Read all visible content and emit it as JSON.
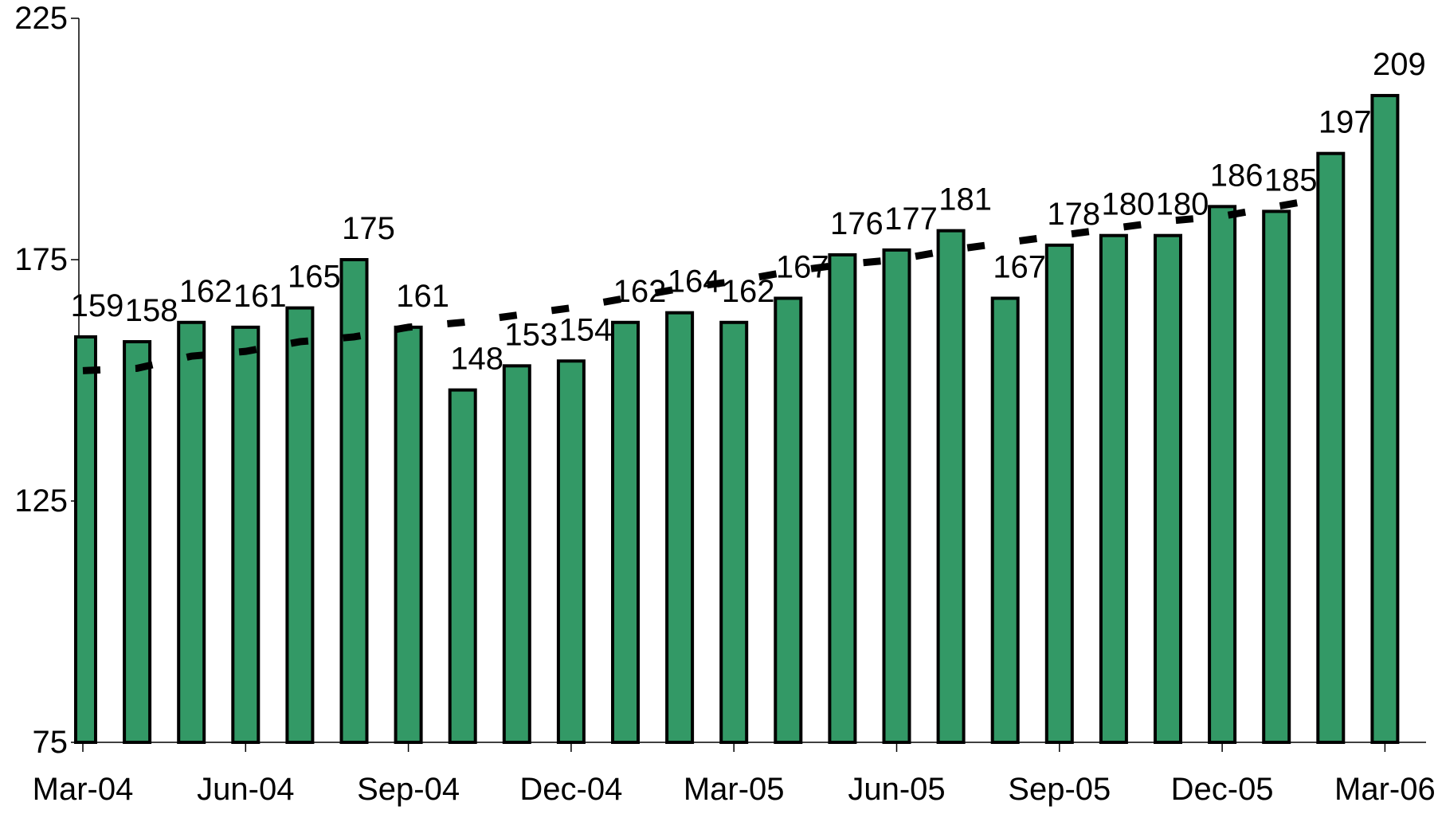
{
  "chart_data": {
    "type": "bar",
    "categories": [
      "Mar-04",
      null,
      null,
      "Jun-04",
      null,
      null,
      "Sep-04",
      null,
      null,
      "Dec-04",
      null,
      null,
      "Mar-05",
      null,
      null,
      "Jun-05",
      null,
      null,
      "Sep-05",
      null,
      null,
      "Dec-05",
      null,
      null,
      "Mar-06"
    ],
    "series": [
      {
        "type": "bar",
        "color": "#339966",
        "values": [
          159,
          158,
          162,
          161,
          165,
          175,
          161,
          148,
          153,
          154,
          162,
          164,
          162,
          167,
          176,
          177,
          181,
          167,
          178,
          180,
          180,
          186,
          185,
          197,
          209
        ]
      },
      {
        "type": "line",
        "color": "#000000",
        "values": [
          152,
          152.5,
          155,
          156,
          158,
          159,
          161,
          162,
          163.5,
          165,
          167,
          169,
          170.5,
          172.5,
          174,
          175,
          177,
          178.5,
          180,
          181.5,
          183,
          184,
          186,
          188,
          null
        ]
      }
    ],
    "ylim": [
      75,
      225
    ],
    "yticks": [
      75,
      125,
      175,
      225
    ]
  }
}
